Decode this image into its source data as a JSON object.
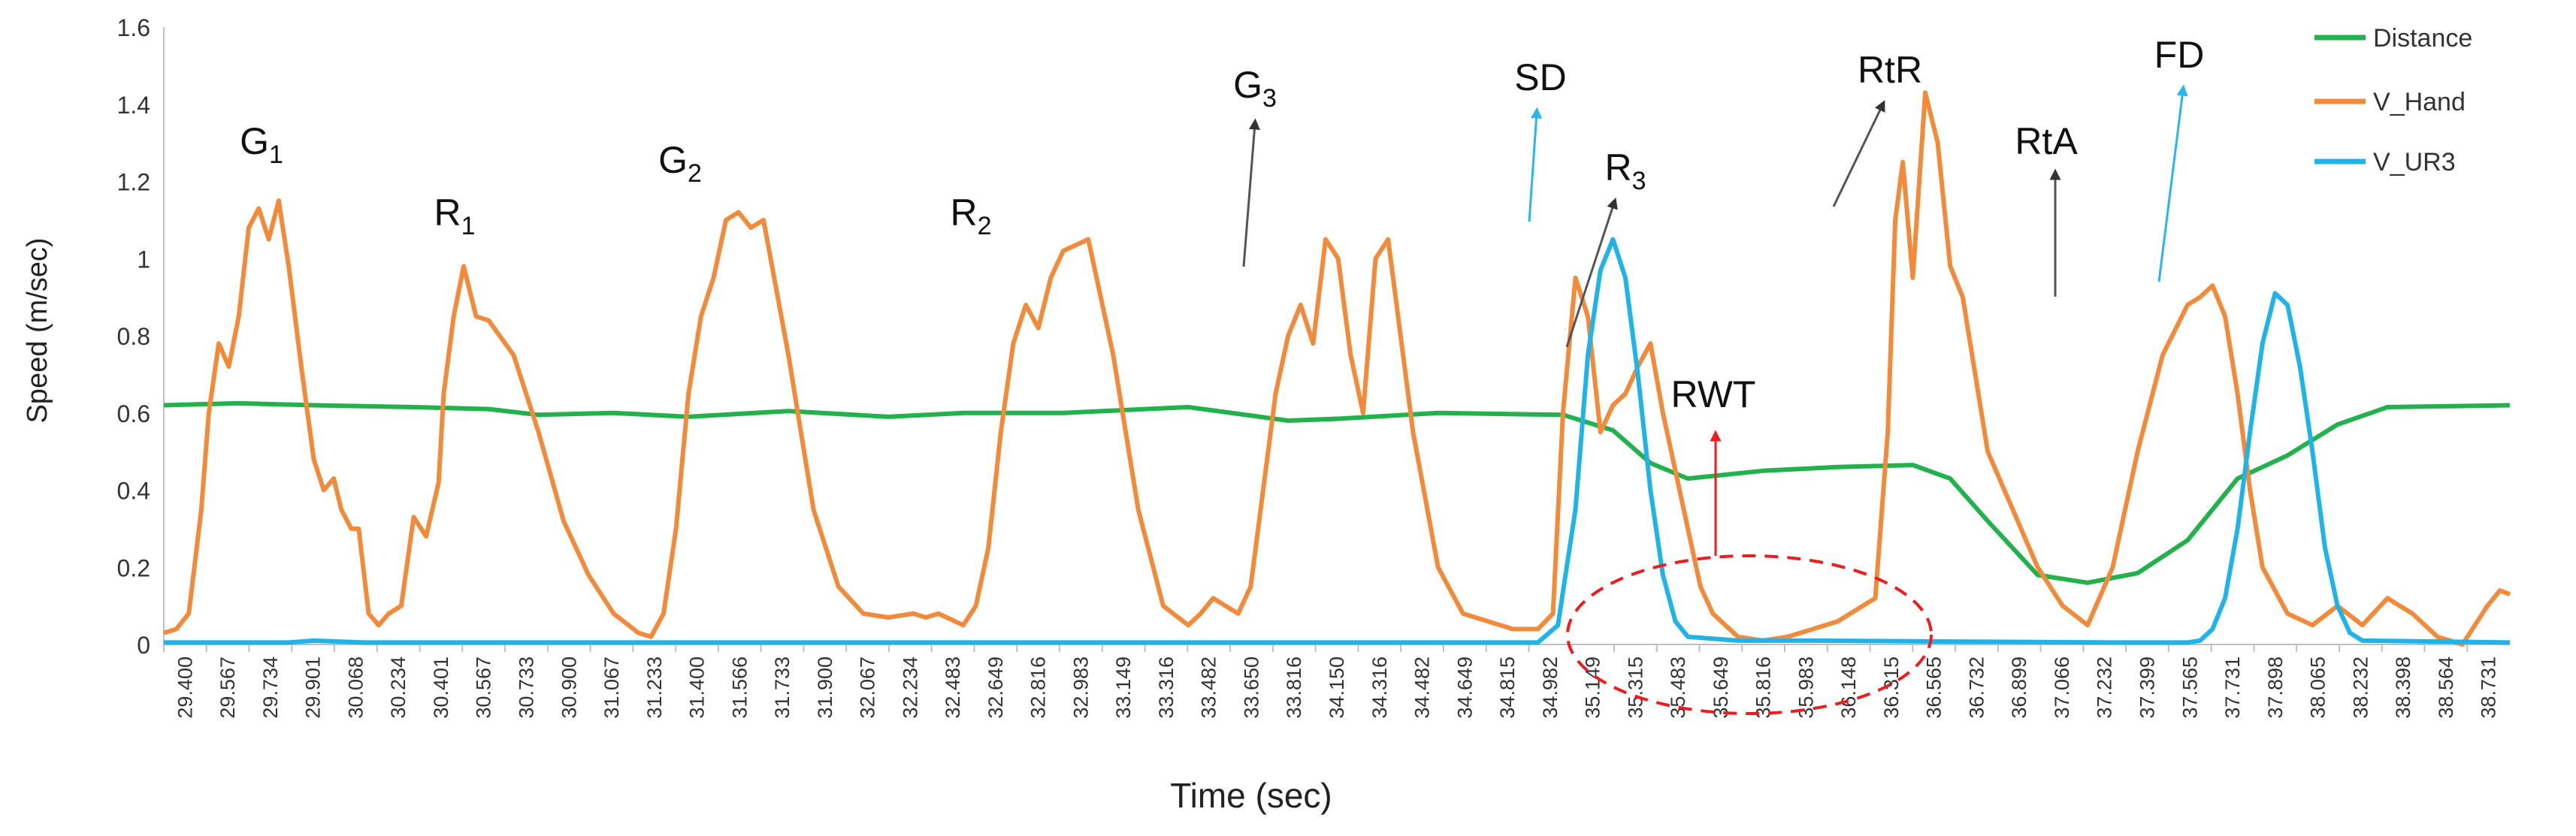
{
  "chart_data": {
    "type": "line",
    "title": "",
    "xlabel": "Time (sec)",
    "ylabel": "Speed (m/sec)",
    "xlim": [
      29.4,
      38.79
    ],
    "ylim": [
      0,
      1.6
    ],
    "y_ticks": [
      "0",
      "0.2",
      "0.4",
      "0.6",
      "0.8",
      "1",
      "1.2",
      "1.4",
      "1.6"
    ],
    "x_tick_labels": [
      "29.400",
      "29.567",
      "29.734",
      "29.901",
      "30.068",
      "30.234",
      "30.401",
      "30.567",
      "30.733",
      "30.900",
      "31.067",
      "31.233",
      "31.400",
      "31.566",
      "31.733",
      "31.900",
      "32.067",
      "32.234",
      "32.483",
      "32.649",
      "32.816",
      "32.983",
      "33.149",
      "33.316",
      "33.482",
      "33.650",
      "33.816",
      "34.150",
      "34.316",
      "34.482",
      "34.649",
      "34.815",
      "34.982",
      "35.149",
      "35.315",
      "35.483",
      "35.649",
      "35.816",
      "35.983",
      "36.148",
      "36.315",
      "36.565",
      "36.732",
      "36.899",
      "37.066",
      "37.232",
      "37.399",
      "37.565",
      "37.731",
      "37.898",
      "38.065",
      "38.232",
      "38.398",
      "38.564",
      "38.731"
    ],
    "grid": false,
    "legend_position": "top-right",
    "series": [
      {
        "name": "Distance",
        "color": "#21b24b",
        "x": [
          29.4,
          29.7,
          30.0,
          30.4,
          30.7,
          30.9,
          31.2,
          31.5,
          31.9,
          32.3,
          32.6,
          33.0,
          33.5,
          33.9,
          34.1,
          34.5,
          35.0,
          35.2,
          35.35,
          35.5,
          35.8,
          36.1,
          36.4,
          36.55,
          36.7,
          36.9,
          37.1,
          37.3,
          37.5,
          37.7,
          37.9,
          38.1,
          38.3,
          38.79
        ],
        "values": [
          0.62,
          0.625,
          0.62,
          0.615,
          0.61,
          0.595,
          0.6,
          0.59,
          0.605,
          0.59,
          0.6,
          0.6,
          0.615,
          0.58,
          0.585,
          0.6,
          0.595,
          0.555,
          0.47,
          0.43,
          0.45,
          0.46,
          0.465,
          0.43,
          0.32,
          0.18,
          0.16,
          0.185,
          0.27,
          0.43,
          0.49,
          0.57,
          0.615,
          0.62
        ]
      },
      {
        "name": "V_Hand",
        "color": "#f28a3a",
        "x": [
          29.4,
          29.45,
          29.5,
          29.55,
          29.58,
          29.62,
          29.66,
          29.7,
          29.74,
          29.78,
          29.82,
          29.86,
          29.9,
          29.95,
          30.0,
          30.04,
          30.08,
          30.11,
          30.15,
          30.18,
          30.22,
          30.26,
          30.3,
          30.35,
          30.4,
          30.45,
          30.5,
          30.52,
          30.56,
          30.6,
          30.65,
          30.7,
          30.8,
          30.9,
          31.0,
          31.1,
          31.2,
          31.3,
          31.35,
          31.4,
          31.45,
          31.5,
          31.55,
          31.6,
          31.65,
          31.7,
          31.75,
          31.8,
          31.9,
          32.0,
          32.1,
          32.2,
          32.3,
          32.4,
          32.45,
          32.5,
          32.6,
          32.65,
          32.7,
          32.75,
          32.8,
          32.85,
          32.9,
          32.95,
          33.0,
          33.1,
          33.2,
          33.3,
          33.4,
          33.5,
          33.55,
          33.6,
          33.7,
          33.75,
          33.8,
          33.85,
          33.9,
          33.95,
          34.0,
          34.05,
          34.1,
          34.15,
          34.2,
          34.25,
          34.3,
          34.4,
          34.5,
          34.6,
          34.7,
          34.8,
          34.9,
          34.96,
          35.0,
          35.05,
          35.1,
          35.15,
          35.2,
          35.25,
          35.3,
          35.35,
          35.4,
          35.45,
          35.5,
          35.55,
          35.6,
          35.7,
          35.8,
          35.9,
          36.0,
          36.1,
          36.2,
          36.25,
          36.3,
          36.33,
          36.36,
          36.4,
          36.45,
          36.5,
          36.55,
          36.6,
          36.65,
          36.7,
          36.8,
          36.9,
          37.0,
          37.1,
          37.2,
          37.3,
          37.4,
          37.5,
          37.55,
          37.6,
          37.65,
          37.7,
          37.75,
          37.8,
          37.9,
          38.0,
          38.1,
          38.2,
          38.3,
          38.4,
          38.5,
          38.6,
          38.65,
          38.7,
          38.75,
          38.79
        ],
        "values": [
          0.03,
          0.04,
          0.08,
          0.35,
          0.6,
          0.78,
          0.72,
          0.85,
          1.08,
          1.13,
          1.05,
          1.15,
          0.98,
          0.72,
          0.48,
          0.4,
          0.43,
          0.35,
          0.3,
          0.3,
          0.08,
          0.05,
          0.08,
          0.1,
          0.33,
          0.28,
          0.42,
          0.65,
          0.85,
          0.98,
          0.85,
          0.84,
          0.75,
          0.55,
          0.32,
          0.18,
          0.08,
          0.03,
          0.02,
          0.08,
          0.3,
          0.65,
          0.85,
          0.95,
          1.1,
          1.12,
          1.08,
          1.1,
          0.75,
          0.35,
          0.15,
          0.08,
          0.07,
          0.08,
          0.07,
          0.08,
          0.05,
          0.1,
          0.25,
          0.55,
          0.78,
          0.88,
          0.82,
          0.95,
          1.02,
          1.05,
          0.75,
          0.35,
          0.1,
          0.05,
          0.08,
          0.12,
          0.08,
          0.15,
          0.4,
          0.65,
          0.8,
          0.88,
          0.78,
          1.05,
          1.0,
          0.75,
          0.6,
          1.0,
          1.05,
          0.55,
          0.2,
          0.08,
          0.06,
          0.04,
          0.04,
          0.08,
          0.6,
          0.95,
          0.85,
          0.55,
          0.62,
          0.65,
          0.72,
          0.78,
          0.6,
          0.45,
          0.3,
          0.15,
          0.08,
          0.02,
          0.01,
          0.02,
          0.04,
          0.06,
          0.1,
          0.12,
          0.55,
          1.1,
          1.25,
          0.95,
          1.43,
          1.3,
          0.98,
          0.9,
          0.7,
          0.5,
          0.35,
          0.2,
          0.1,
          0.05,
          0.2,
          0.5,
          0.75,
          0.88,
          0.9,
          0.93,
          0.85,
          0.65,
          0.4,
          0.2,
          0.08,
          0.05,
          0.1,
          0.05,
          0.12,
          0.08,
          0.02,
          0.0,
          0.05,
          0.1,
          0.14,
          0.13
        ]
      },
      {
        "name": "V_UR3",
        "color": "#1fb3e8",
        "x": [
          29.4,
          29.9,
          30.0,
          30.2,
          31.0,
          34.9,
          34.98,
          35.05,
          35.1,
          35.15,
          35.2,
          35.25,
          35.3,
          35.35,
          35.4,
          35.45,
          35.5,
          35.7,
          36.0,
          37.2,
          37.4,
          37.5,
          37.55,
          37.6,
          37.65,
          37.7,
          37.75,
          37.8,
          37.85,
          37.9,
          37.95,
          38.0,
          38.05,
          38.1,
          38.15,
          38.2,
          38.79
        ],
        "values": [
          0.005,
          0.005,
          0.01,
          0.005,
          0.005,
          0.005,
          0.05,
          0.35,
          0.75,
          0.97,
          1.05,
          0.95,
          0.7,
          0.4,
          0.18,
          0.06,
          0.02,
          0.01,
          0.01,
          0.005,
          0.005,
          0.005,
          0.01,
          0.04,
          0.12,
          0.3,
          0.55,
          0.78,
          0.91,
          0.88,
          0.72,
          0.5,
          0.25,
          0.1,
          0.03,
          0.01,
          0.005
        ]
      }
    ],
    "annotations": [
      {
        "base": "G",
        "sub": "1",
        "text": "G1"
      },
      {
        "base": "R",
        "sub": "1",
        "text": "R1"
      },
      {
        "base": "G",
        "sub": "2",
        "text": "G2"
      },
      {
        "base": "R",
        "sub": "2",
        "text": "R2"
      },
      {
        "base": "G",
        "sub": "3",
        "text": "G3"
      },
      {
        "base": "SD",
        "sub": "",
        "text": "SD"
      },
      {
        "base": "R",
        "sub": "3",
        "text": "R3"
      },
      {
        "base": "RWT",
        "sub": "",
        "text": "RWT"
      },
      {
        "base": "RtR",
        "sub": "",
        "text": "RtR"
      },
      {
        "base": "RtA",
        "sub": "",
        "text": "RtA"
      },
      {
        "base": "FD",
        "sub": "",
        "text": "FD"
      }
    ]
  }
}
